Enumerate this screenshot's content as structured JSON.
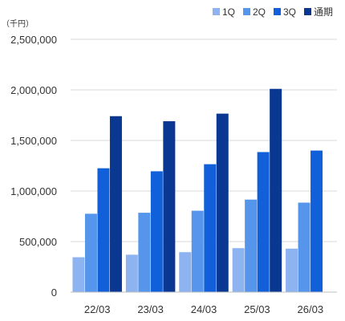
{
  "chart_data": {
    "type": "bar",
    "unit_label": "（千円）",
    "categories": [
      "22/03",
      "23/03",
      "24/03",
      "25/03",
      "26/03"
    ],
    "series": [
      {
        "name": "1Q",
        "color": "#8db4f0",
        "values": [
          345000,
          370000,
          395000,
          435000,
          430000
        ]
      },
      {
        "name": "2Q",
        "color": "#5596ec",
        "values": [
          775000,
          785000,
          805000,
          915000,
          885000
        ]
      },
      {
        "name": "3Q",
        "color": "#1260d9",
        "values": [
          1225000,
          1195000,
          1265000,
          1385000,
          1400000
        ]
      },
      {
        "name": "通期",
        "color": "#0a3791",
        "values": [
          1740000,
          1690000,
          1765000,
          2010000,
          null
        ]
      }
    ],
    "ylim": [
      0,
      2500000
    ],
    "yticks": [
      "0",
      "500,000",
      "1,000,000",
      "1,500,000",
      "2,000,000",
      "2,500,000"
    ],
    "ytick_values": [
      0,
      500000,
      1000000,
      1500000,
      2000000,
      2500000
    ],
    "grid": true,
    "legend_position": "top-right",
    "title": "",
    "xlabel": "",
    "ylabel": ""
  }
}
